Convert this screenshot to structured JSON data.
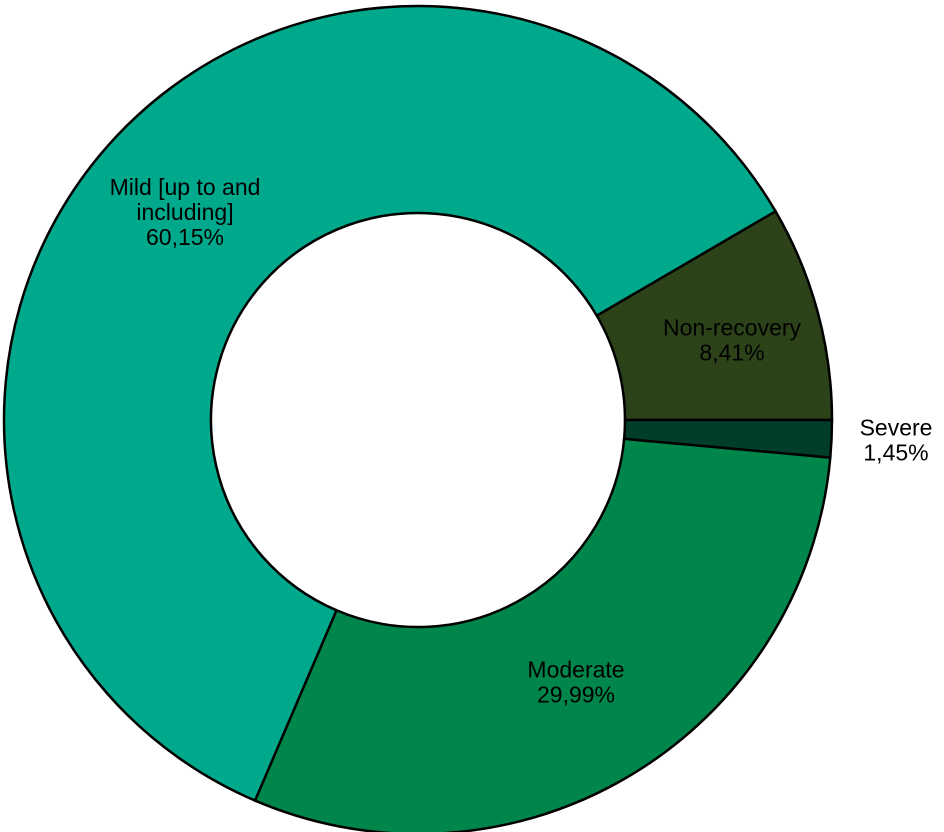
{
  "chart_data": {
    "type": "pie",
    "variant": "donut",
    "title": "",
    "slices": [
      {
        "name": "Non-recovery",
        "label_lines": [
          "Non-recovery"
        ],
        "value_label": "8,41%",
        "value": 8.41,
        "color": "#2c4219",
        "label_position": "inside"
      },
      {
        "name": "Severe",
        "label_lines": [
          "Severe"
        ],
        "value_label": "1,45%",
        "value": 1.45,
        "color": "#003d2b",
        "label_position": "outside"
      },
      {
        "name": "Moderate",
        "label_lines": [
          "Moderate"
        ],
        "value_label": "29,99%",
        "value": 29.99,
        "color": "#00864a",
        "label_position": "inside"
      },
      {
        "name": "Mild [up to and including]",
        "label_lines": [
          "Mild [up to and",
          "including]"
        ],
        "value_label": "60,15%",
        "value": 60.15,
        "color": "#00a98c",
        "label_position": "inside"
      }
    ],
    "legend": "none",
    "slice_order": "clockwise from 3 o'clock"
  }
}
